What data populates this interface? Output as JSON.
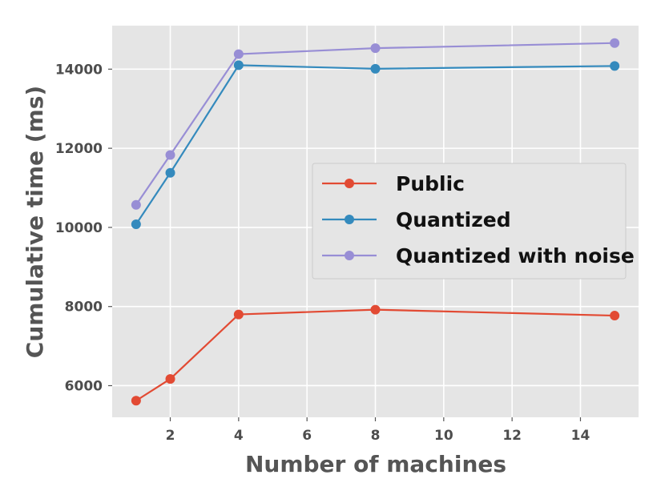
{
  "chart_data": {
    "type": "line",
    "xlabel": "Number of machines",
    "ylabel": "Cumulative time (ms)",
    "xlim": [
      0.3,
      15.7
    ],
    "ylim": [
      5200,
      15100
    ],
    "xticks": [
      2,
      4,
      6,
      8,
      10,
      12,
      14
    ],
    "yticks": [
      6000,
      8000,
      10000,
      12000,
      14000
    ],
    "x": [
      1,
      2,
      4,
      8,
      15
    ],
    "grid": true,
    "legend_position": "center-right",
    "series": [
      {
        "name": "Public",
        "color": "#e24a33",
        "values": [
          5620,
          6170,
          7800,
          7920,
          7770
        ]
      },
      {
        "name": "Quantized",
        "color": "#348abd",
        "values": [
          10080,
          11380,
          14100,
          14010,
          14080
        ]
      },
      {
        "name": "Quantized with noise",
        "color": "#988ed5",
        "values": [
          10570,
          11830,
          14380,
          14530,
          14660
        ]
      }
    ]
  }
}
